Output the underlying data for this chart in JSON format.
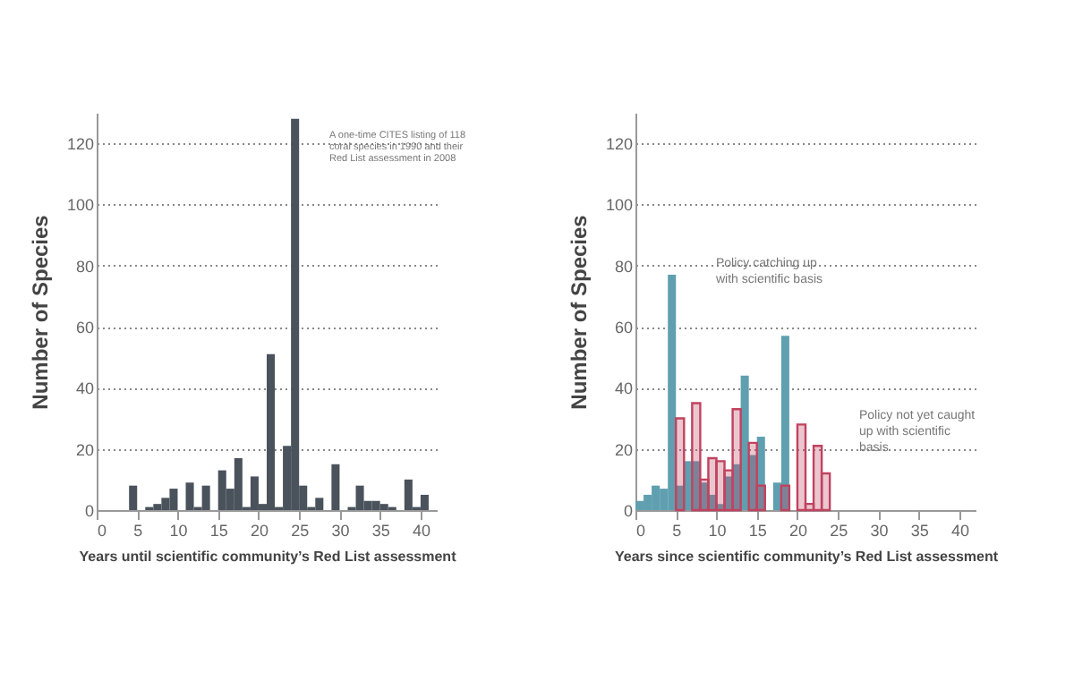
{
  "chart_data": [
    {
      "type": "histogram",
      "xlabel": "Years until scientific community’s Red List assessment",
      "ylabel": "Number of Species",
      "bins": [
        0,
        1,
        2,
        3,
        4,
        5,
        6,
        7,
        8,
        9,
        10,
        11,
        12,
        13,
        14,
        15,
        16,
        17,
        18,
        19,
        20,
        21,
        22,
        23,
        24,
        25,
        26,
        27,
        28,
        29,
        30,
        31,
        32,
        33,
        34,
        35,
        36,
        37,
        38,
        39,
        40,
        41
      ],
      "values": [
        null,
        null,
        null,
        null,
        8,
        null,
        1,
        2,
        4,
        7,
        null,
        9,
        1,
        8,
        null,
        13,
        7,
        17,
        1,
        11,
        2,
        51,
        1,
        21,
        128,
        8,
        1,
        4,
        null,
        15,
        null,
        1,
        8,
        3,
        3,
        2,
        1,
        null,
        10,
        1,
        5
      ],
      "color": "#4a525c",
      "xlim": [
        0,
        42
      ],
      "xticks": [
        0,
        5,
        10,
        15,
        20,
        25,
        30,
        35,
        40
      ],
      "ylim": [
        0,
        130
      ],
      "yticks": [
        0,
        20,
        40,
        60,
        80,
        100,
        120
      ],
      "grid": "y",
      "annotations": [
        "A one-time CITES listing of 118 coral species in 1990 and their Red List assessment in 2008"
      ]
    },
    {
      "type": "histogram",
      "xlabel": "Years since scientific community’s Red List assessment",
      "ylabel": "Number of Species",
      "bins": [
        0,
        1,
        2,
        3,
        4,
        5,
        6,
        7,
        8,
        9,
        10,
        11,
        12,
        13,
        14,
        15,
        16,
        17,
        18,
        19,
        20,
        21,
        22,
        23,
        24
      ],
      "series": [
        {
          "color": "#5f9fb0",
          "values": [
            3,
            5,
            8,
            7,
            77,
            8,
            16,
            16,
            9,
            5,
            2,
            11,
            15,
            44,
            18,
            24,
            null,
            9,
            57,
            null,
            null,
            null,
            null,
            null
          ]
        },
        {
          "color": "#c0435f",
          "values": [
            null,
            null,
            null,
            null,
            null,
            30,
            null,
            35,
            10,
            17,
            16,
            13,
            33,
            null,
            22,
            8,
            null,
            null,
            8,
            null,
            28,
            2,
            21,
            12
          ]
        }
      ],
      "xlim": [
        0,
        42
      ],
      "xticks": [
        0,
        5,
        10,
        15,
        20,
        25,
        30,
        35,
        40
      ],
      "ylim": [
        0,
        130
      ],
      "yticks": [
        0,
        20,
        40,
        60,
        80,
        100,
        120
      ],
      "grid": "y",
      "annotations": [
        "Policy catching up with scientific basis",
        "Policy not yet caught up with scientific basis"
      ]
    }
  ]
}
